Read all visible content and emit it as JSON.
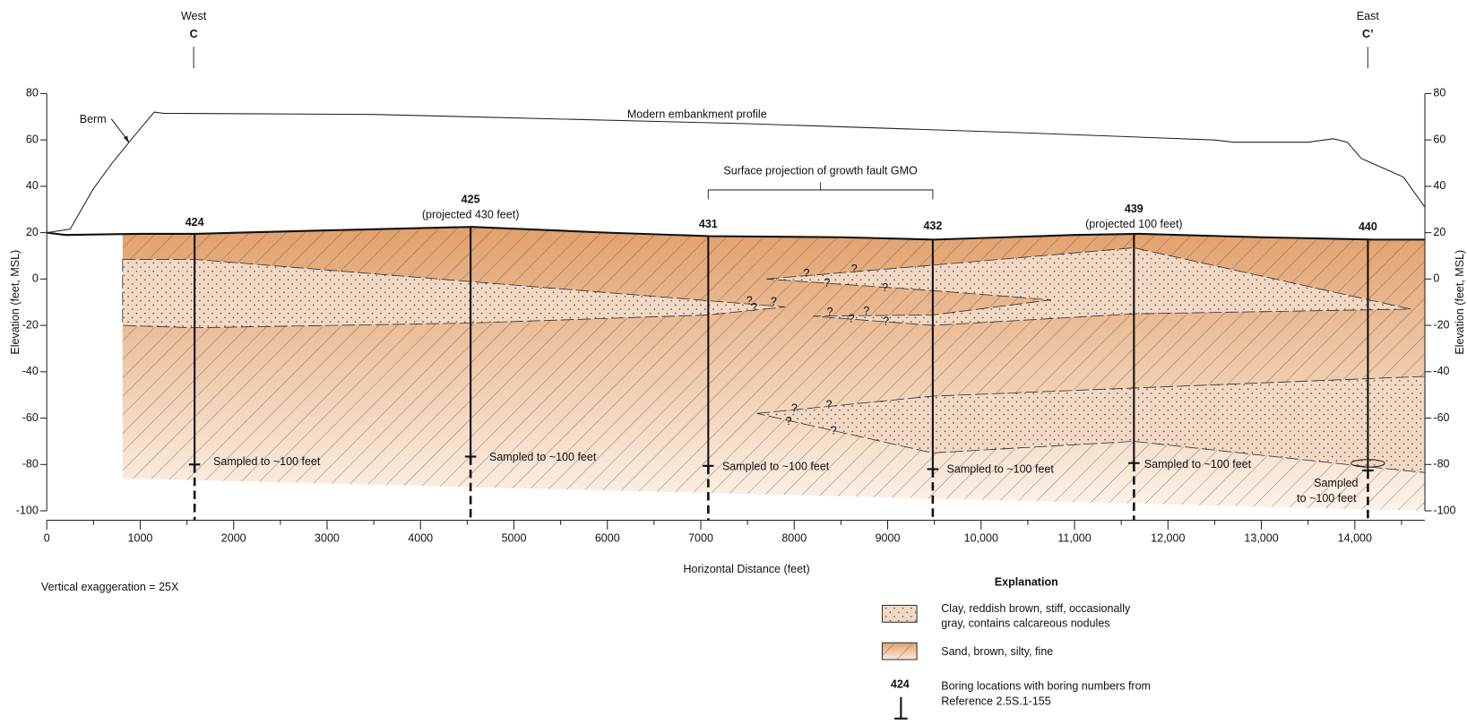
{
  "header": {
    "west": "West",
    "west_mark": "C",
    "east": "East",
    "east_mark": "C’"
  },
  "axes": {
    "x_label": "Horizontal Distance (feet)",
    "y_label": "Elevation (feet, MSL)",
    "xlim": [
      0,
      14750
    ],
    "ylim": [
      -100,
      80
    ],
    "xticks": [
      0,
      1000,
      2000,
      3000,
      4000,
      5000,
      6000,
      7000,
      8000,
      9000,
      {
        "value": 10000,
        "label": "10,000"
      },
      {
        "value": 11000,
        "label": "11,000"
      },
      {
        "value": 12000,
        "label": "12,000"
      },
      {
        "value": 13000,
        "label": "13,000"
      },
      {
        "value": 14000,
        "label": "14,000"
      }
    ],
    "yticks": [
      80,
      60,
      40,
      20,
      0,
      -20,
      -40,
      -60,
      -80,
      -100
    ]
  },
  "annotations": {
    "berm": "Berm",
    "embankment": "Modern embankment profile",
    "fault": "Surface projection of growth fault GMO",
    "exaggeration": "Vertical exaggeration = 25X",
    "uncertain": "?"
  },
  "borings": [
    {
      "number": "424",
      "sampled": [
        "Sampled to ~100 feet"
      ]
    },
    {
      "number": "425",
      "note": "(projected 430 feet)",
      "sampled": [
        "Sampled to ~100 feet"
      ]
    },
    {
      "number": "431",
      "sampled": [
        "Sampled to ~100 feet"
      ]
    },
    {
      "number": "432",
      "sampled": [
        "Sampled to ~100 feet"
      ]
    },
    {
      "number": "439",
      "note": "(projected 100 feet)",
      "sampled": [
        "Sampled to ~100 feet"
      ]
    },
    {
      "number": "440",
      "sampled": [
        "Sampled",
        "to ~100 feet"
      ]
    }
  ],
  "legend": {
    "title": "Explanation",
    "items": [
      {
        "label": [
          "Clay, reddish brown, stiff, occasionally",
          "gray, contains calcareous nodules"
        ]
      },
      {
        "label": [
          "Sand, brown, silty, fine"
        ]
      },
      {
        "symbol": "424",
        "label": [
          "Boring locations with boring numbers from",
          "Reference 2.5S.1-155"
        ]
      }
    ]
  }
}
